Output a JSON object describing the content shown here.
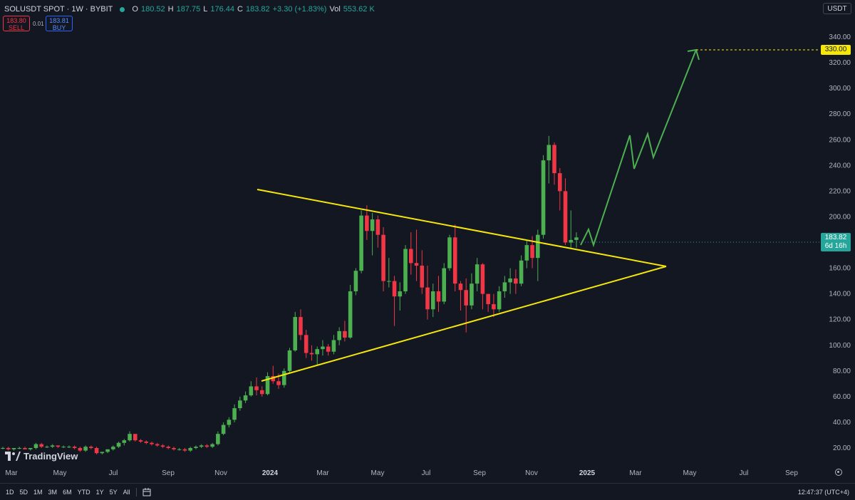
{
  "header": {
    "title": "SOLUSDT SPOT · 1W · BYBIT",
    "ohlc": {
      "o_label": "O",
      "o": "180.52",
      "h_label": "H",
      "h": "187.75",
      "l_label": "L",
      "l": "176.44",
      "c_label": "C",
      "c": "183.82",
      "change": "+3.30 (+1.83%)",
      "vol_label": "Vol",
      "vol": "553.62 K"
    },
    "sell_price": "183.80",
    "sell_label": "SELL",
    "spread": "0.01",
    "buy_price": "183.81",
    "buy_label": "BUY",
    "currency": "USDT"
  },
  "price_axis": {
    "ticks": [
      "340.00",
      "320.00",
      "300.00",
      "280.00",
      "260.00",
      "240.00",
      "220.00",
      "200.00",
      "180.00",
      "160.00",
      "140.00",
      "120.00",
      "100.00",
      "80.00",
      "60.00",
      "40.00",
      "20.00"
    ],
    "target_tag": "330.00",
    "current_price": "183.82",
    "countdown": "6d 16h"
  },
  "time_axis": {
    "labels": [
      "Mar",
      "May",
      "Jul",
      "Sep",
      "Nov",
      "2024",
      "Mar",
      "May",
      "Jul",
      "Sep",
      "Nov",
      "2025",
      "Mar",
      "May",
      "Jul",
      "Sep"
    ]
  },
  "watermark": "TradingView",
  "bottom_bar": {
    "timeframes": [
      "1D",
      "5D",
      "1M",
      "3M",
      "6M",
      "YTD",
      "1Y",
      "5Y",
      "All"
    ],
    "clock": "12:47:37 (UTC+4)"
  },
  "colors": {
    "background": "#131722",
    "up": "#26a69a",
    "up_candle": "#4caf50",
    "down_candle": "#f23645",
    "triangle": "#f5e70a",
    "projection": "#4caf50"
  },
  "chart_data": {
    "type": "candlestick",
    "interval": "1W",
    "symbol": "SOLUSDT",
    "ylim": [
      10,
      350
    ],
    "annotations": {
      "triangle_upper": [
        [
          220,
          "2023-12"
        ],
        [
          162,
          "2025-04"
        ]
      ],
      "triangle_lower": [
        [
          70,
          "2023-12"
        ],
        [
          162,
          "2025-04"
        ]
      ],
      "target": 330,
      "projection_path": [
        182,
        192,
        182,
        262,
        238,
        265,
        248,
        330
      ]
    },
    "candles": [
      [
        20,
        21,
        19,
        20
      ],
      [
        20,
        21,
        18,
        19
      ],
      [
        19,
        20,
        18,
        20
      ],
      [
        20,
        21,
        19,
        20
      ],
      [
        20,
        21,
        19,
        19
      ],
      [
        19,
        20,
        18,
        20
      ],
      [
        20,
        24,
        19,
        23
      ],
      [
        23,
        24,
        20,
        21
      ],
      [
        21,
        22,
        20,
        21
      ],
      [
        21,
        23,
        20,
        22
      ],
      [
        22,
        22,
        20,
        21
      ],
      [
        21,
        22,
        20,
        21
      ],
      [
        21,
        22,
        20,
        21
      ],
      [
        21,
        22,
        19,
        20
      ],
      [
        20,
        21,
        17,
        18
      ],
      [
        18,
        22,
        17,
        21
      ],
      [
        21,
        22,
        19,
        20
      ],
      [
        20,
        21,
        15,
        16
      ],
      [
        16,
        17,
        15,
        17
      ],
      [
        17,
        19,
        16,
        19
      ],
      [
        19,
        22,
        18,
        21
      ],
      [
        21,
        25,
        20,
        24
      ],
      [
        24,
        27,
        22,
        26
      ],
      [
        26,
        33,
        25,
        31
      ],
      [
        31,
        30,
        25,
        26
      ],
      [
        26,
        27,
        24,
        25
      ],
      [
        25,
        26,
        23,
        24
      ],
      [
        24,
        25,
        22,
        23
      ],
      [
        23,
        24,
        21,
        22
      ],
      [
        22,
        23,
        20,
        21
      ],
      [
        21,
        22,
        19,
        20
      ],
      [
        20,
        21,
        18,
        19
      ],
      [
        19,
        20,
        18,
        19
      ],
      [
        19,
        20,
        17,
        18
      ],
      [
        18,
        21,
        17,
        20
      ],
      [
        20,
        22,
        19,
        21
      ],
      [
        21,
        23,
        20,
        22
      ],
      [
        22,
        23,
        20,
        21
      ],
      [
        21,
        24,
        20,
        23
      ],
      [
        23,
        33,
        22,
        31
      ],
      [
        31,
        40,
        30,
        38
      ],
      [
        38,
        44,
        36,
        42
      ],
      [
        42,
        54,
        40,
        51
      ],
      [
        51,
        60,
        49,
        57
      ],
      [
        57,
        64,
        55,
        61
      ],
      [
        61,
        72,
        60,
        68
      ],
      [
        68,
        75,
        61,
        65
      ],
      [
        65,
        68,
        60,
        62
      ],
      [
        62,
        79,
        61,
        76
      ],
      [
        76,
        84,
        70,
        72
      ],
      [
        72,
        78,
        66,
        69
      ],
      [
        69,
        82,
        67,
        80
      ],
      [
        80,
        98,
        78,
        96
      ],
      [
        96,
        126,
        95,
        122
      ],
      [
        122,
        128,
        104,
        108
      ],
      [
        108,
        112,
        90,
        94
      ],
      [
        94,
        100,
        88,
        93
      ],
      [
        93,
        99,
        85,
        97
      ],
      [
        97,
        104,
        92,
        99
      ],
      [
        99,
        101,
        92,
        95
      ],
      [
        95,
        108,
        93,
        104
      ],
      [
        104,
        114,
        100,
        111
      ],
      [
        111,
        119,
        103,
        106
      ],
      [
        106,
        147,
        105,
        142
      ],
      [
        142,
        160,
        139,
        158
      ],
      [
        158,
        205,
        156,
        201
      ],
      [
        201,
        209,
        182,
        189
      ],
      [
        189,
        203,
        170,
        198
      ],
      [
        198,
        201,
        176,
        186
      ],
      [
        186,
        192,
        142,
        150
      ],
      [
        150,
        168,
        145,
        150
      ],
      [
        150,
        154,
        115,
        138
      ],
      [
        138,
        149,
        127,
        142
      ],
      [
        142,
        178,
        140,
        175
      ],
      [
        175,
        188,
        155,
        164
      ],
      [
        164,
        190,
        150,
        162
      ],
      [
        162,
        174,
        140,
        145
      ],
      [
        145,
        162,
        120,
        128
      ],
      [
        128,
        148,
        122,
        142
      ],
      [
        142,
        154,
        126,
        134
      ],
      [
        134,
        164,
        132,
        160
      ],
      [
        160,
        186,
        158,
        184
      ],
      [
        184,
        194,
        142,
        148
      ],
      [
        148,
        150,
        127,
        143
      ],
      [
        143,
        152,
        110,
        131
      ],
      [
        131,
        156,
        128,
        148
      ],
      [
        148,
        168,
        142,
        163
      ],
      [
        163,
        164,
        128,
        140
      ],
      [
        140,
        138,
        126,
        132
      ],
      [
        132,
        140,
        122,
        128
      ],
      [
        128,
        146,
        126,
        142
      ],
      [
        142,
        154,
        137,
        149
      ],
      [
        149,
        160,
        140,
        152
      ],
      [
        152,
        159,
        140,
        148
      ],
      [
        148,
        170,
        146,
        166
      ],
      [
        166,
        182,
        160,
        178
      ],
      [
        178,
        185,
        160,
        168
      ],
      [
        168,
        190,
        150,
        186
      ],
      [
        186,
        248,
        183,
        244
      ],
      [
        244,
        263,
        226,
        256
      ],
      [
        256,
        258,
        225,
        234
      ],
      [
        234,
        238,
        205,
        220
      ],
      [
        220,
        230,
        178,
        180
      ],
      [
        180,
        205,
        176,
        182
      ],
      [
        182,
        188,
        176,
        184
      ]
    ]
  }
}
